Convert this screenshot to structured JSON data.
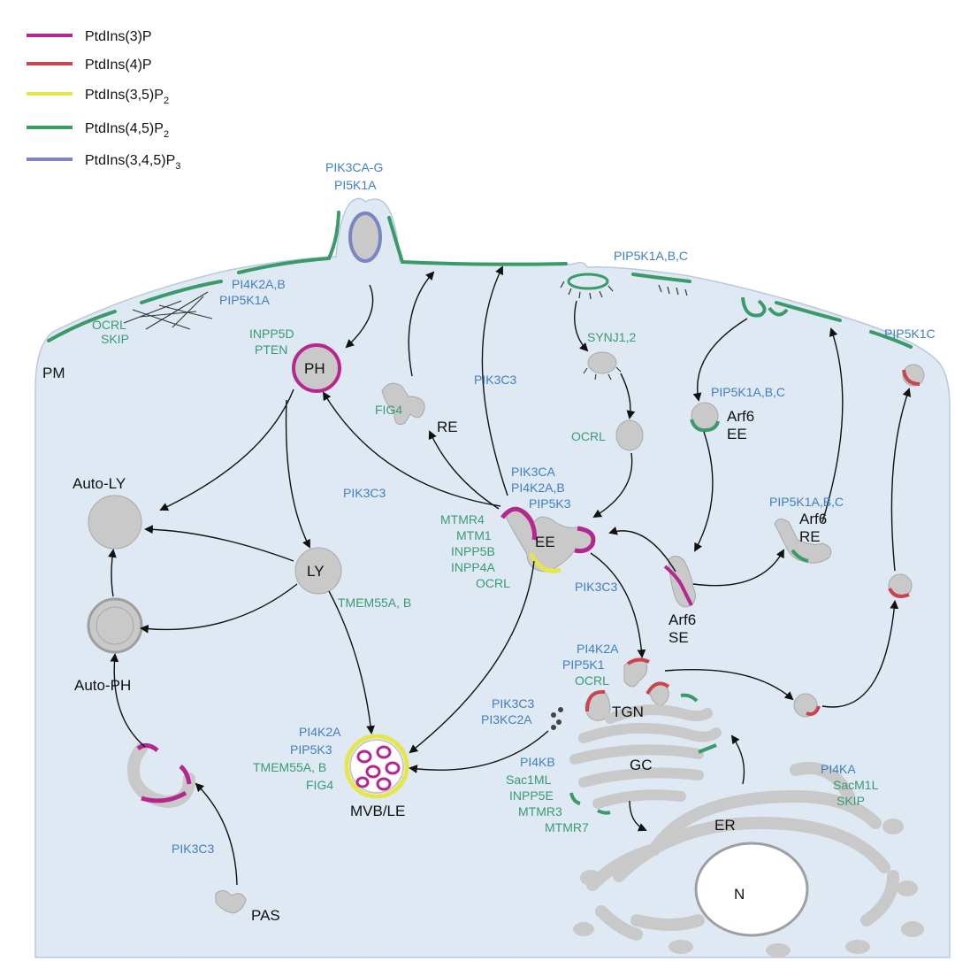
{
  "colors": {
    "ptdins3p": "#b5278f",
    "ptdins4p": "#c8454f",
    "ptdins35p2": "#e3e64d",
    "ptdins45p2": "#3a9a6a",
    "ptdins345p3": "#7a85c2",
    "cell": "#dfe9f4",
    "organelle": "#c9c9c9",
    "kinase_label": "#3f7fc4",
    "phosphatase_label": "#3a9a72"
  },
  "legend": [
    {
      "name": "PtdIns(3)P",
      "sub": "",
      "color_key": "ptdins3p"
    },
    {
      "name": "PtdIns(4)P",
      "sub": "",
      "color_key": "ptdins4p"
    },
    {
      "name": "PtdIns(3,5)P",
      "sub": "2",
      "color_key": "ptdins35p2"
    },
    {
      "name": "PtdIns(4,5)P",
      "sub": "2",
      "color_key": "ptdins45p2"
    },
    {
      "name": "PtdIns(3,4,5)P",
      "sub": "3",
      "color_key": "ptdins345p3"
    }
  ],
  "compartments": {
    "pm": "PM",
    "ph": "PH",
    "re": "RE",
    "auto_ly": "Auto-LY",
    "ly": "LY",
    "auto_ph": "Auto-PH",
    "ee": "EE",
    "arf6_ee_1": "Arf6",
    "arf6_ee_2": "EE",
    "arf6_re_1": "Arf6",
    "arf6_re_2": "RE",
    "arf6_se_1": "Arf6",
    "arf6_se_2": "SE",
    "tgn": "TGN",
    "gc": "GC",
    "er": "ER",
    "n": "N",
    "mvb": "MVB/LE",
    "pas": "PAS"
  },
  "enzymes": {
    "top_1": "PIK3CA-G",
    "top_2": "PI5K1A",
    "pm_kin_1": "PI4K2A,B",
    "pm_kin_2": "PIP5K1A",
    "pm_pho_1": "OCRL",
    "pm_pho_2": "SKIP",
    "pm_right": "PIP5K1A,B,C",
    "pm_far_right": "PIP5K1C",
    "ph_pho_1": "INPP5D",
    "ph_pho_2": "PTEN",
    "fig4_re": "FIG4",
    "pik3c3_top": "PIK3C3",
    "synj": "SYNJ1,2",
    "ocrl_ves": "OCRL",
    "arf6_ee_kin": "PIP5K1A,B,C",
    "ee_kin_1": "PIK3CA",
    "ee_kin_2": "PI4K2A,B",
    "ee_kin_3": "PIP5K3",
    "pik3c3_left": "PIK3C3",
    "ee_pho_1": "MTMR4",
    "ee_pho_2": "MTM1",
    "ee_pho_3": "INPP5B",
    "ee_pho_4": "INPP4A",
    "ee_pho_5": "OCRL",
    "arf6_re_kin": "PIP5K1A,B,C",
    "tmem_ly": "TMEM55A, B",
    "pik3c3_ee": "PIK3C3",
    "tgn_kin_1": "PI4K2A",
    "tgn_kin_2": "PIP5K1",
    "tgn_pho": "OCRL",
    "tgn_kin_3": "PIK3C3",
    "tgn_kin_4": "PI3KC2A",
    "mvb_kin_1": "PI4K2A",
    "mvb_kin_2": "PIP5K3",
    "mvb_pho_1": "TMEM55A, B",
    "mvb_pho_2": "FIG4",
    "gc_kin": "PI4KB",
    "gc_pho_1": "Sac1ML",
    "gc_pho_2": "INPP5E",
    "gc_pho_3": "MTMR3",
    "gc_pho_4": "MTMR7",
    "er_kin": "PI4KA",
    "er_pho_1": "SacM1L",
    "er_pho_2": "SKIP",
    "pas_kin": "PIK3C3"
  }
}
